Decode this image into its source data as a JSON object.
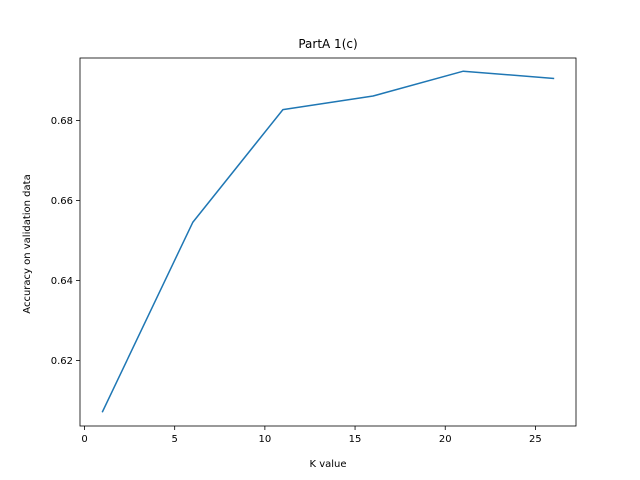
{
  "chart_data": {
    "type": "line",
    "title": "PartA 1(c)",
    "xlabel": "K value",
    "ylabel": "Accuracy on validation data",
    "xlim": [
      -0.25,
      27.25
    ],
    "ylim": [
      0.6036,
      0.6956
    ],
    "xticks": [
      0,
      5,
      10,
      15,
      20,
      25
    ],
    "yticks": [
      0.62,
      0.64,
      0.66,
      0.68
    ],
    "xtick_labels": [
      "0",
      "5",
      "10",
      "15",
      "20",
      "25"
    ],
    "ytick_labels": [
      "0.62",
      "0.64",
      "0.66",
      "0.68"
    ],
    "grid": false,
    "line_color": "#1f77b4",
    "series": [
      {
        "x": [
          1,
          6,
          11,
          16,
          21,
          26
        ],
        "y": [
          0.6072,
          0.6545,
          0.6827,
          0.6861,
          0.6923,
          0.6905
        ]
      }
    ]
  }
}
